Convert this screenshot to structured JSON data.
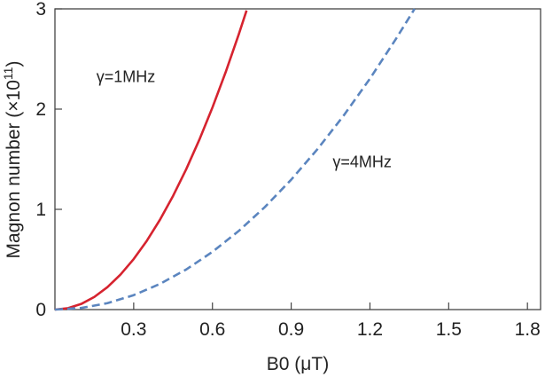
{
  "chart_data": {
    "type": "line",
    "xlabel": "B0 (μT)",
    "ylabel": "Magnon number (×10",
    "ylabel_superscript": "11",
    "ylabel_suffix": ")",
    "xlim": [
      0,
      1.85
    ],
    "ylim": [
      0,
      3
    ],
    "xticks": [
      "0.3",
      "0.6",
      "0.9",
      "1.2",
      "1.5",
      "1.8"
    ],
    "yticks": [
      "0",
      "1",
      "2",
      "3"
    ],
    "grid": false,
    "series": [
      {
        "name": "γ=1MHz",
        "color": "#d6232f",
        "style": "solid",
        "label_at": [
          0.27,
          2.27
        ],
        "x": [
          0.0,
          0.05,
          0.1,
          0.15,
          0.2,
          0.25,
          0.3,
          0.35,
          0.4,
          0.45,
          0.5,
          0.55,
          0.6,
          0.65,
          0.7,
          0.73
        ],
        "y": [
          0.0,
          0.014,
          0.056,
          0.126,
          0.224,
          0.35,
          0.504,
          0.686,
          0.896,
          1.134,
          1.4,
          1.694,
          2.016,
          2.366,
          2.744,
          2.984
        ]
      },
      {
        "name": "γ=4MHz",
        "color": "#5b85bf",
        "style": "dashed",
        "label_at": [
          1.17,
          1.42
        ],
        "x": [
          0.0,
          0.1,
          0.2,
          0.3,
          0.4,
          0.5,
          0.6,
          0.7,
          0.8,
          0.9,
          1.0,
          1.1,
          1.2,
          1.3,
          1.37
        ],
        "y": [
          0.0,
          0.016,
          0.064,
          0.144,
          0.256,
          0.4,
          0.576,
          0.784,
          1.024,
          1.296,
          1.6,
          1.936,
          2.304,
          2.704,
          3.0
        ]
      }
    ]
  }
}
